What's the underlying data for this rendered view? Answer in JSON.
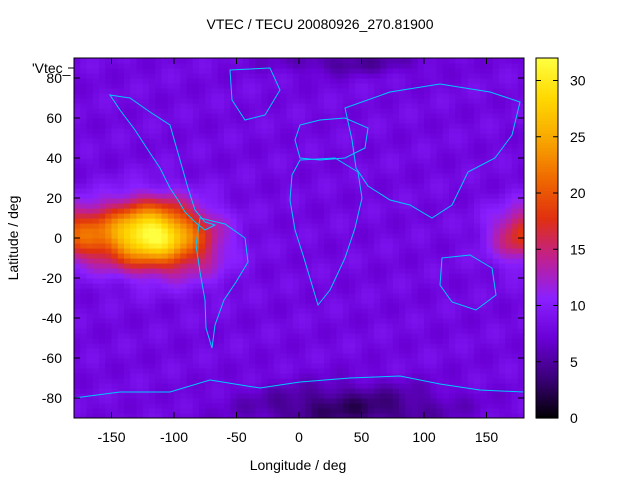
{
  "chart_data": {
    "type": "heatmap",
    "title": "VTEC / TECU 20080926_270.81900",
    "xlabel": "Longitude / deg",
    "ylabel": "Latitude / deg",
    "xlim": [
      -180,
      180
    ],
    "ylim": [
      -90,
      90
    ],
    "x_ticks": [
      "-150",
      "-100",
      "-50",
      "0",
      "50",
      "100",
      "150"
    ],
    "x_tick_values": [
      -150,
      -100,
      -50,
      0,
      50,
      100,
      150
    ],
    "y_ticks": [
      "80",
      "60",
      "40",
      "20",
      "0",
      "-20",
      "-40",
      "-60",
      "-80"
    ],
    "y_tick_values": [
      80,
      60,
      40,
      20,
      0,
      -20,
      -40,
      -60,
      -80
    ],
    "colorbar": {
      "range": [
        0,
        32
      ],
      "ticks": [
        "30",
        "25",
        "20",
        "15",
        "10",
        "5",
        "0"
      ],
      "tick_values": [
        30,
        25,
        20,
        15,
        10,
        5,
        0
      ],
      "colors": [
        "#000000",
        "#3a0078",
        "#6a00d6",
        "#8a20ff",
        "#c02090",
        "#e03010",
        "#f06a00",
        "#f8a800",
        "#ffd800",
        "#ffff40"
      ]
    },
    "legend_label": "'Vtec_",
    "map_color": "#00c8ff",
    "features": {
      "max_region": {
        "lon": -120,
        "lat": 2,
        "vtec": 32
      },
      "equatorial_band_lat": [
        -20,
        20
      ],
      "background_vtec": 8,
      "south_polar_min_vtec": 3
    }
  }
}
